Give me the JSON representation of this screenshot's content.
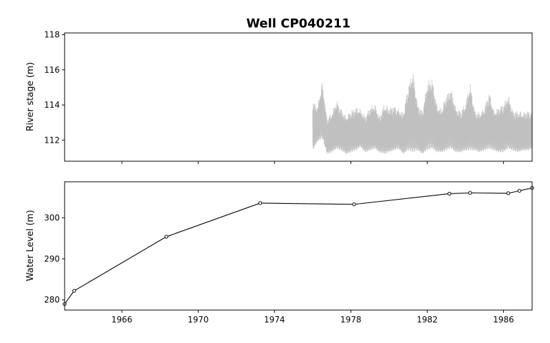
{
  "chart_data": [
    {
      "type": "line",
      "title": "Well CP040211",
      "xlabel": "",
      "ylabel": "River stage (m)",
      "xlim": [
        "1963-01-01",
        "1987-07-01"
      ],
      "ylim": [
        110.8,
        118.1
      ],
      "yticks": [
        "112",
        "114",
        "116",
        "118"
      ],
      "grid": false,
      "series_color": "#c0c0c0",
      "series": [
        {
          "x": [
            "1976-01",
            "1976-04",
            "1976-07",
            "1976-10",
            "1977-01",
            "1977-04",
            "1977-07",
            "1977-10",
            "1978-01",
            "1978-04",
            "1978-07",
            "1978-10",
            "1979-01",
            "1979-04",
            "1979-07",
            "1979-10",
            "1980-01",
            "1980-04",
            "1980-07",
            "1980-10",
            "1981-01",
            "1981-04",
            "1981-07",
            "1981-10",
            "1982-01",
            "1982-04",
            "1982-07",
            "1982-10",
            "1983-01",
            "1983-04",
            "1983-07",
            "1983-10",
            "1984-01",
            "1984-04",
            "1984-07",
            "1984-10",
            "1985-01",
            "1985-04",
            "1985-07",
            "1985-10",
            "1986-01",
            "1986-04",
            "1986-07",
            "1986-10",
            "1987-01",
            "1987-04",
            "1987-07"
          ],
          "max": [
            114.3,
            113.9,
            115.4,
            113.3,
            113.6,
            114.3,
            113.8,
            113.4,
            113.7,
            113.9,
            113.8,
            113.4,
            113.9,
            114.1,
            113.4,
            114.1,
            113.9,
            114.0,
            113.8,
            113.6,
            115.1,
            116.0,
            114.1,
            113.7,
            115.3,
            115.6,
            114.1,
            113.8,
            114.6,
            115.0,
            113.9,
            113.7,
            114.1,
            115.3,
            113.7,
            113.6,
            113.9,
            114.8,
            113.7,
            113.9,
            114.1,
            114.6,
            113.7,
            113.7,
            113.6,
            113.7,
            113.6
          ],
          "min": [
            111.4,
            111.9,
            112.1,
            111.2,
            111.3,
            111.5,
            111.4,
            111.2,
            111.3,
            111.4,
            111.6,
            111.3,
            111.4,
            111.5,
            111.3,
            111.2,
            111.3,
            111.4,
            111.5,
            111.2,
            111.4,
            111.3,
            111.4,
            111.2,
            111.4,
            111.5,
            111.3,
            111.3,
            111.4,
            111.5,
            111.3,
            111.3,
            111.4,
            111.4,
            111.4,
            111.3,
            111.4,
            111.5,
            111.4,
            111.3,
            111.3,
            111.5,
            111.4,
            111.3,
            111.4,
            111.4,
            111.5
          ]
        }
      ]
    },
    {
      "type": "line",
      "xlabel": "",
      "ylabel": "Water Level (m)",
      "xlim": [
        "1963-01-01",
        "1987-07-01"
      ],
      "ylim": [
        277.5,
        308.8
      ],
      "yticks": [
        "280",
        "290",
        "300"
      ],
      "xticks": [
        "1966",
        "1970",
        "1974",
        "1978",
        "1982",
        "1986"
      ],
      "grid": false,
      "series_color": "#000000",
      "series": [
        {
          "x": [
            "1963-01",
            "1963-07",
            "1968-05",
            "1973-04",
            "1978-03",
            "1983-03",
            "1984-04",
            "1986-04",
            "1986-11",
            "1987-07"
          ],
          "y": [
            279.0,
            282.2,
            295.4,
            303.6,
            303.3,
            305.9,
            306.1,
            306.0,
            306.6,
            307.3
          ]
        }
      ]
    }
  ]
}
